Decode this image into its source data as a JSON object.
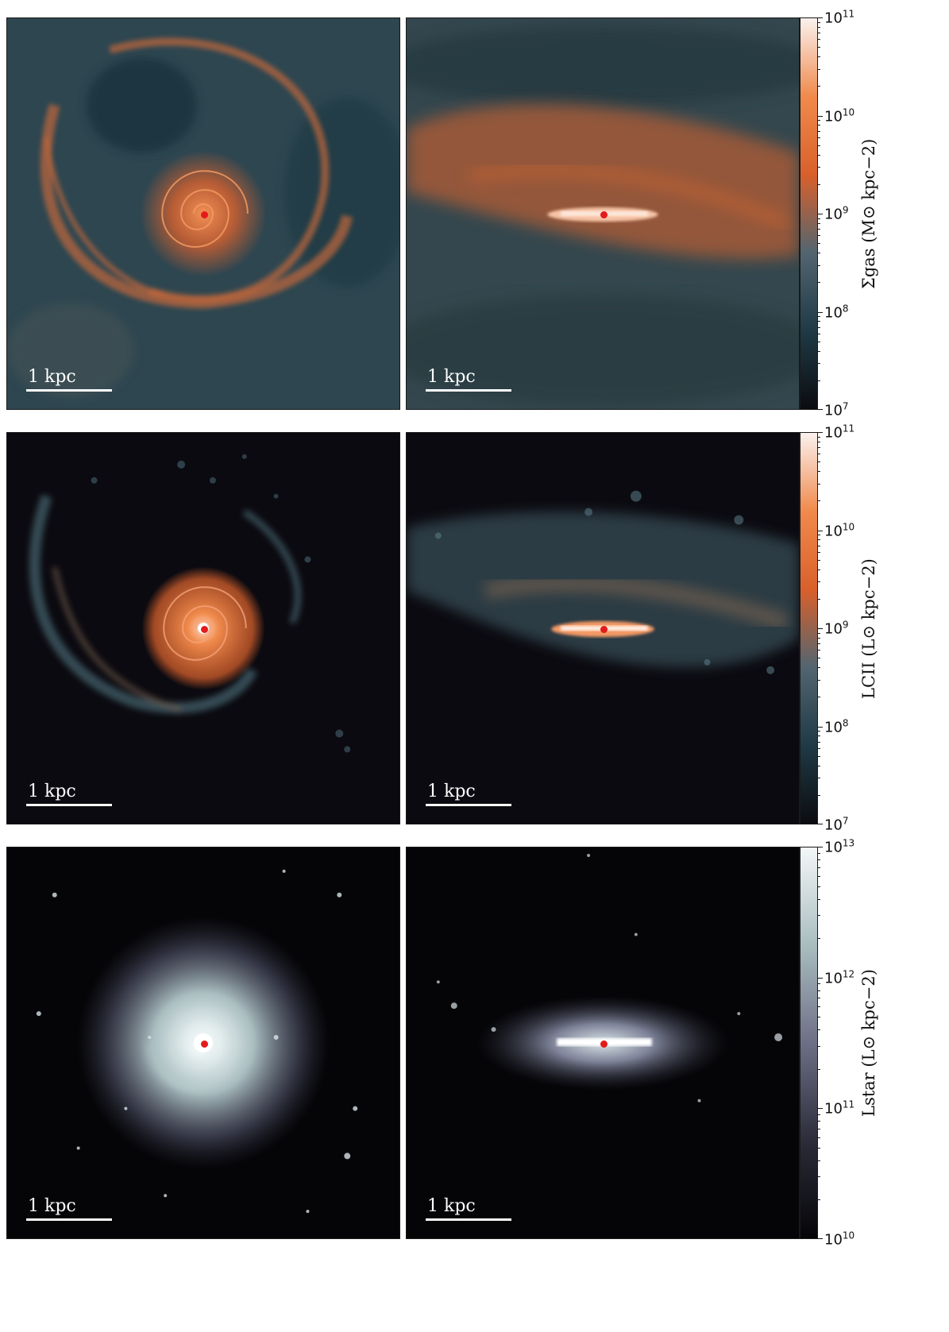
{
  "figure": {
    "rows": [
      {
        "id": "gas",
        "panels": [
          {
            "view": "face-on",
            "scalebar_label": "1 kpc"
          },
          {
            "view": "edge-on",
            "scalebar_label": "1 kpc"
          }
        ],
        "colorbar": {
          "label": "Σgas (M⊙ kpc−2)",
          "ticks": [
            "10^11",
            "10^10",
            "10^9",
            "10^8",
            "10^7"
          ],
          "min_log": 7,
          "max_log": 11,
          "colors": [
            "#0b0c10",
            "#1f3a46",
            "#526570",
            "#d9602b",
            "#f08a4c",
            "#fbf1ee"
          ]
        }
      },
      {
        "id": "cii",
        "panels": [
          {
            "view": "face-on",
            "scalebar_label": "1 kpc"
          },
          {
            "view": "edge-on",
            "scalebar_label": "1 kpc"
          }
        ],
        "colorbar": {
          "label": "LCII (L⊙ kpc−2)",
          "ticks": [
            "10^11",
            "10^10",
            "10^9",
            "10^8",
            "10^7"
          ],
          "min_log": 7,
          "max_log": 11,
          "colors": [
            "#0b0c10",
            "#1f3a46",
            "#526570",
            "#d9602b",
            "#f08a4c",
            "#fbf1ee"
          ]
        }
      },
      {
        "id": "star",
        "panels": [
          {
            "view": "face-on",
            "scalebar_label": "1 kpc"
          },
          {
            "view": "edge-on",
            "scalebar_label": "1 kpc"
          }
        ],
        "colorbar": {
          "label": "Lstar (L⊙ kpc−2)",
          "ticks": [
            "10^13",
            "10^12",
            "10^11",
            "10^10"
          ],
          "min_log": 10,
          "max_log": 13,
          "colors": [
            "#050508",
            "#2c2c3a",
            "#6d6f86",
            "#a9bdc0",
            "#f3f7f7"
          ]
        }
      }
    ],
    "galaxy_center_marker_color": "#e41a1c"
  }
}
